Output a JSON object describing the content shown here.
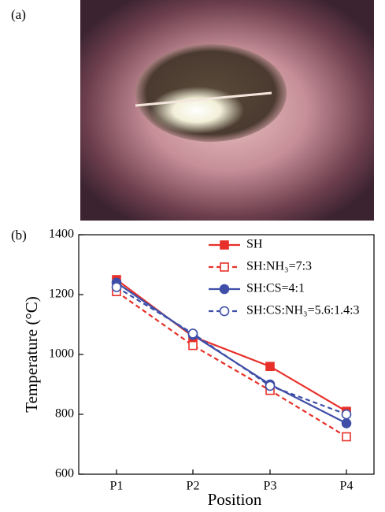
{
  "panel_labels": [
    "(a)",
    "(b)"
  ],
  "chart_data": {
    "type": "line",
    "x_label": "Position",
    "y_label": "Temperature (°C)",
    "categories": [
      "P1",
      "P2",
      "P3",
      "P4"
    ],
    "ylim": [
      600,
      1400
    ],
    "yticks": [
      600,
      800,
      1000,
      1200,
      1400
    ],
    "series": [
      {
        "name": "SH",
        "color": "#e8302a",
        "dashed": false,
        "marker": "square",
        "filled": true,
        "values": [
          1250,
          1060,
          960,
          810
        ]
      },
      {
        "name": "SH:NH₃=7:3",
        "color": "#e8302a",
        "dashed": true,
        "marker": "square",
        "filled": false,
        "values": [
          1210,
          1030,
          880,
          725
        ]
      },
      {
        "name": "SH:CS=4:1",
        "color": "#3f4fa8",
        "dashed": false,
        "marker": "circle",
        "filled": true,
        "values": [
          1240,
          1065,
          900,
          770
        ]
      },
      {
        "name": "SH:CS:NH₃=5.6:1.4:3",
        "color": "#3f4fa8",
        "dashed": true,
        "marker": "circle",
        "filled": false,
        "values": [
          1225,
          1070,
          895,
          800
        ]
      }
    ]
  }
}
